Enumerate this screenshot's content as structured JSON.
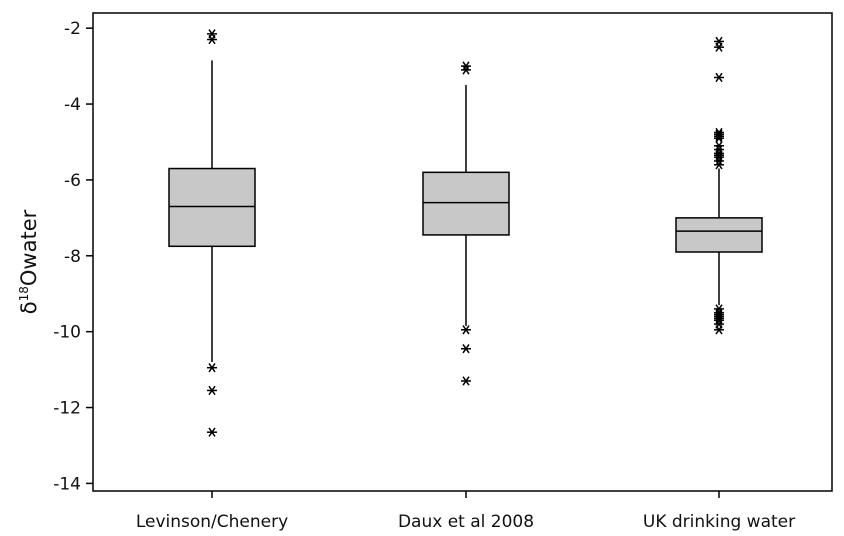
{
  "chart_data": {
    "type": "box",
    "ylabel": {
      "prefix": "δ",
      "superscript": "18",
      "suffix": "Owater"
    },
    "ylim": [
      -14.2,
      -1.6
    ],
    "yticks": [
      -2,
      -4,
      -6,
      -8,
      -10,
      -12,
      -14
    ],
    "ytick_labels": [
      "-2",
      "-4",
      "-6",
      "-8",
      "-10",
      "-12",
      "-14"
    ],
    "grid": false,
    "colors": {
      "box_fill": "#c8c8c8",
      "stroke": "#000000"
    },
    "categories": [
      "Levinson/Chenery",
      "Daux et al 2008",
      "UK drinking water"
    ],
    "boxes": [
      {
        "q1": -7.75,
        "median": -6.7,
        "q3": -5.7,
        "whisker_low": -10.8,
        "whisker_high": -2.85,
        "outliers": [
          -2.15,
          -2.3,
          -10.95,
          -11.55,
          -12.65
        ]
      },
      {
        "q1": -7.45,
        "median": -6.6,
        "q3": -5.8,
        "whisker_low": -9.85,
        "whisker_high": -3.5,
        "outliers": [
          -3.0,
          -3.1,
          -9.95,
          -10.45,
          -11.3
        ]
      },
      {
        "q1": -7.9,
        "median": -7.35,
        "q3": -7.0,
        "whisker_low": -9.3,
        "whisker_high": -5.7,
        "outliers": [
          -2.35,
          -2.5,
          -3.3,
          -4.75,
          -4.8,
          -4.85,
          -4.9,
          -5.1,
          -5.2,
          -5.3,
          -5.35,
          -5.4,
          -5.5,
          -5.6,
          -9.4,
          -9.5,
          -9.55,
          -9.6,
          -9.65,
          -9.7,
          -9.8,
          -9.95
        ]
      }
    ]
  }
}
